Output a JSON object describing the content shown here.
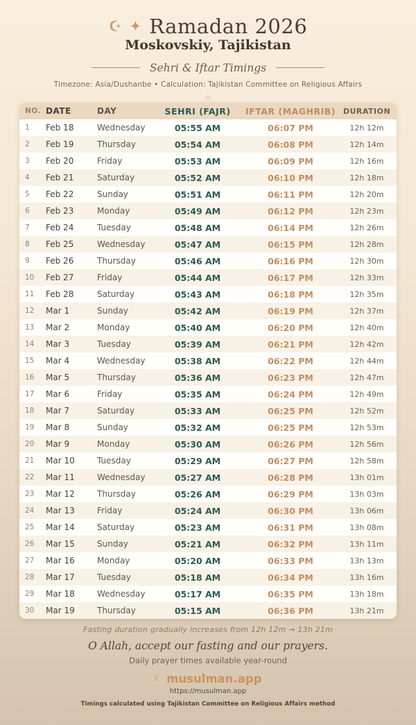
{
  "header": {
    "crescent_icon": "☪",
    "star_icon": "✦",
    "title": "Ramadan 2026",
    "location": "Moskovskiy, Tajikistan",
    "subtitle": "Sehri & Iftar Timings",
    "meta": "Timezone: Asia/Dushanbe • Calculation: Tajikistan Committee on Religious Affairs",
    "ornament": "◇"
  },
  "table": {
    "columns": [
      "NO.",
      "DATE",
      "DAY",
      "SEHRI (FAJR)",
      "IFTAR (MAGHRIB)",
      "DURATION"
    ],
    "rows": [
      {
        "no": "1",
        "date": "Feb 18",
        "day": "Wednesday",
        "sehri": "05:55 AM",
        "iftar": "06:07 PM",
        "duration": "12h 12m"
      },
      {
        "no": "2",
        "date": "Feb 19",
        "day": "Thursday",
        "sehri": "05:54 AM",
        "iftar": "06:08 PM",
        "duration": "12h 14m"
      },
      {
        "no": "3",
        "date": "Feb 20",
        "day": "Friday",
        "sehri": "05:53 AM",
        "iftar": "06:09 PM",
        "duration": "12h 16m"
      },
      {
        "no": "4",
        "date": "Feb 21",
        "day": "Saturday",
        "sehri": "05:52 AM",
        "iftar": "06:10 PM",
        "duration": "12h 18m"
      },
      {
        "no": "5",
        "date": "Feb 22",
        "day": "Sunday",
        "sehri": "05:51 AM",
        "iftar": "06:11 PM",
        "duration": "12h 20m"
      },
      {
        "no": "6",
        "date": "Feb 23",
        "day": "Monday",
        "sehri": "05:49 AM",
        "iftar": "06:12 PM",
        "duration": "12h 23m"
      },
      {
        "no": "7",
        "date": "Feb 24",
        "day": "Tuesday",
        "sehri": "05:48 AM",
        "iftar": "06:14 PM",
        "duration": "12h 26m"
      },
      {
        "no": "8",
        "date": "Feb 25",
        "day": "Wednesday",
        "sehri": "05:47 AM",
        "iftar": "06:15 PM",
        "duration": "12h 28m"
      },
      {
        "no": "9",
        "date": "Feb 26",
        "day": "Thursday",
        "sehri": "05:46 AM",
        "iftar": "06:16 PM",
        "duration": "12h 30m"
      },
      {
        "no": "10",
        "date": "Feb 27",
        "day": "Friday",
        "sehri": "05:44 AM",
        "iftar": "06:17 PM",
        "duration": "12h 33m"
      },
      {
        "no": "11",
        "date": "Feb 28",
        "day": "Saturday",
        "sehri": "05:43 AM",
        "iftar": "06:18 PM",
        "duration": "12h 35m"
      },
      {
        "no": "12",
        "date": "Mar 1",
        "day": "Sunday",
        "sehri": "05:42 AM",
        "iftar": "06:19 PM",
        "duration": "12h 37m"
      },
      {
        "no": "13",
        "date": "Mar 2",
        "day": "Monday",
        "sehri": "05:40 AM",
        "iftar": "06:20 PM",
        "duration": "12h 40m"
      },
      {
        "no": "14",
        "date": "Mar 3",
        "day": "Tuesday",
        "sehri": "05:39 AM",
        "iftar": "06:21 PM",
        "duration": "12h 42m"
      },
      {
        "no": "15",
        "date": "Mar 4",
        "day": "Wednesday",
        "sehri": "05:38 AM",
        "iftar": "06:22 PM",
        "duration": "12h 44m"
      },
      {
        "no": "16",
        "date": "Mar 5",
        "day": "Thursday",
        "sehri": "05:36 AM",
        "iftar": "06:23 PM",
        "duration": "12h 47m"
      },
      {
        "no": "17",
        "date": "Mar 6",
        "day": "Friday",
        "sehri": "05:35 AM",
        "iftar": "06:24 PM",
        "duration": "12h 49m"
      },
      {
        "no": "18",
        "date": "Mar 7",
        "day": "Saturday",
        "sehri": "05:33 AM",
        "iftar": "06:25 PM",
        "duration": "12h 52m"
      },
      {
        "no": "19",
        "date": "Mar 8",
        "day": "Sunday",
        "sehri": "05:32 AM",
        "iftar": "06:25 PM",
        "duration": "12h 53m"
      },
      {
        "no": "20",
        "date": "Mar 9",
        "day": "Monday",
        "sehri": "05:30 AM",
        "iftar": "06:26 PM",
        "duration": "12h 56m"
      },
      {
        "no": "21",
        "date": "Mar 10",
        "day": "Tuesday",
        "sehri": "05:29 AM",
        "iftar": "06:27 PM",
        "duration": "12h 58m"
      },
      {
        "no": "22",
        "date": "Mar 11",
        "day": "Wednesday",
        "sehri": "05:27 AM",
        "iftar": "06:28 PM",
        "duration": "13h 01m"
      },
      {
        "no": "23",
        "date": "Mar 12",
        "day": "Thursday",
        "sehri": "05:26 AM",
        "iftar": "06:29 PM",
        "duration": "13h 03m"
      },
      {
        "no": "24",
        "date": "Mar 13",
        "day": "Friday",
        "sehri": "05:24 AM",
        "iftar": "06:30 PM",
        "duration": "13h 06m"
      },
      {
        "no": "25",
        "date": "Mar 14",
        "day": "Saturday",
        "sehri": "05:23 AM",
        "iftar": "06:31 PM",
        "duration": "13h 08m"
      },
      {
        "no": "26",
        "date": "Mar 15",
        "day": "Sunday",
        "sehri": "05:21 AM",
        "iftar": "06:32 PM",
        "duration": "13h 11m"
      },
      {
        "no": "27",
        "date": "Mar 16",
        "day": "Monday",
        "sehri": "05:20 AM",
        "iftar": "06:33 PM",
        "duration": "13h 13m"
      },
      {
        "no": "28",
        "date": "Mar 17",
        "day": "Tuesday",
        "sehri": "05:18 AM",
        "iftar": "06:34 PM",
        "duration": "13h 16m"
      },
      {
        "no": "29",
        "date": "Mar 18",
        "day": "Wednesday",
        "sehri": "05:17 AM",
        "iftar": "06:35 PM",
        "duration": "13h 18m"
      },
      {
        "no": "30",
        "date": "Mar 19",
        "day": "Thursday",
        "sehri": "05:15 AM",
        "iftar": "06:36 PM",
        "duration": "13h 21m"
      }
    ]
  },
  "footer": {
    "duration_note": "Fasting duration gradually increases from 12h 12m → 13h 21m",
    "dua": "O Allah, accept our fasting and our prayers.",
    "availability": "Daily prayer times available year-round",
    "brand_icon": "☾",
    "brand_name": "musulman.app",
    "brand_url": "https://musulman.app",
    "method_note": "Timings calculated using Tajikistan Committee on Religious Affairs method"
  },
  "colors": {
    "accent_tan": "#c9996e",
    "sehri_green": "#2e5b51",
    "iftar_orange": "#c28f61",
    "table_header_bg": "#ead8c0",
    "page_bg_top": "#f9eedd",
    "page_bg_bottom": "#d5c4ad"
  }
}
